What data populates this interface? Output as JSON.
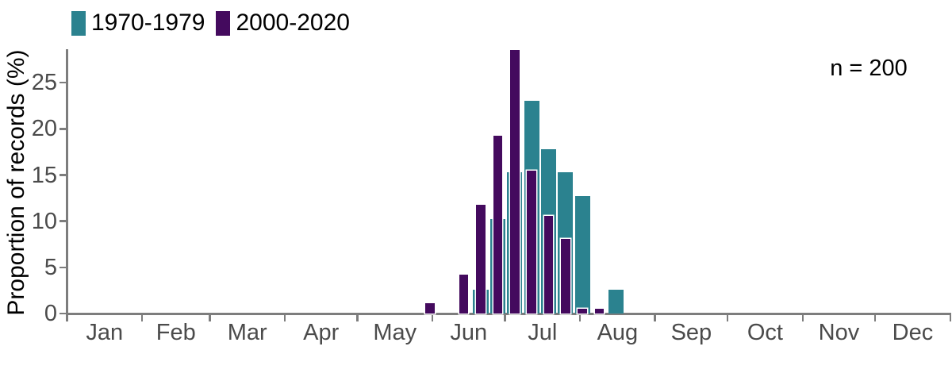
{
  "chart_data": {
    "type": "bar",
    "title": "",
    "ylabel": "Proportion of records (%)",
    "xlabel": "",
    "annotation": "n = 200",
    "legend": [
      {
        "label": "1970-1979",
        "color": "#2b828f"
      },
      {
        "label": "2000-2020",
        "color": "#440a5e"
      }
    ],
    "y_axis": {
      "ticks": [
        0,
        5,
        10,
        15,
        20,
        25
      ],
      "range": [
        0,
        29
      ],
      "grid": false
    },
    "x_axis": {
      "month_labels": [
        "Jan",
        "Feb",
        "Mar",
        "Apr",
        "May",
        "Jun",
        "Jul",
        "Aug",
        "Sep",
        "Oct",
        "Nov",
        "Dec"
      ],
      "month_boundary_days": [
        0,
        31,
        59,
        90,
        120,
        151,
        181,
        212,
        243,
        273,
        304,
        334,
        365
      ]
    },
    "bins": {
      "start_day_of_year": 146.5,
      "width_days": 7
    },
    "series": [
      {
        "name": "1970-1979",
        "color": "#2b828f",
        "values": [
          0,
          0,
          0,
          2.6,
          10.3,
          15.4,
          23.1,
          17.9,
          15.4,
          12.8,
          0,
          2.6
        ]
      },
      {
        "name": "2000-2020",
        "color": "#440a5e",
        "values": [
          1.2,
          0,
          4.3,
          11.8,
          19.3,
          28.6,
          15.5,
          10.6,
          8.1,
          0.6,
          0.6,
          0
        ]
      }
    ],
    "legend_position": "top-left",
    "colors": {
      "axis": "#7d7d7d",
      "tick_label": "#4b4b4b",
      "text": "#000000",
      "background": "#ffffff"
    }
  }
}
